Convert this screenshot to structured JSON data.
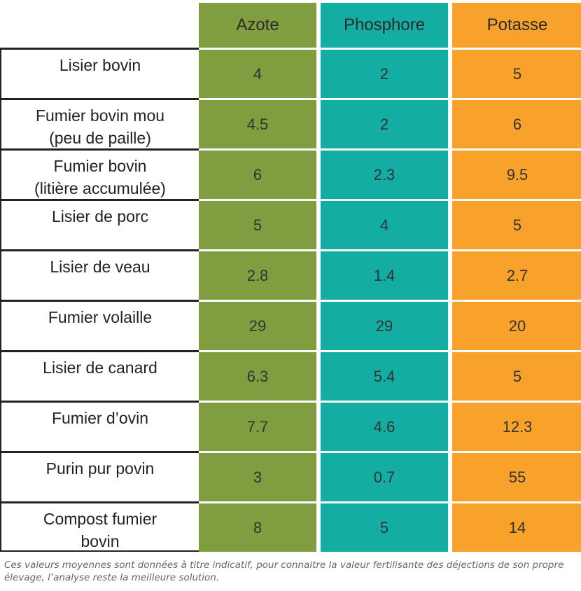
{
  "columns": [
    "Azote",
    "Phosphore",
    "Potasse"
  ],
  "colors": {
    "azote": "#809e40",
    "phosphore": "#14ada4",
    "potasse": "#f8a22c"
  },
  "rows": [
    {
      "label": "Lisier bovin",
      "azote": "4",
      "phosphore": "2",
      "potasse": "5"
    },
    {
      "label": "Fumier bovin mou\n(peu de paille)",
      "azote": "4.5",
      "phosphore": "2",
      "potasse": "6"
    },
    {
      "label": "Fumier bovin\n(litière accumulée)",
      "azote": "6",
      "phosphore": "2.3",
      "potasse": "9.5"
    },
    {
      "label": "Lisier de porc",
      "azote": "5",
      "phosphore": "4",
      "potasse": "5"
    },
    {
      "label": "Lisier de veau",
      "azote": "2.8",
      "phosphore": "1.4",
      "potasse": "2.7"
    },
    {
      "label": "Fumier volaille",
      "azote": "29",
      "phosphore": "29",
      "potasse": "20"
    },
    {
      "label": "Lisier de canard",
      "azote": "6.3",
      "phosphore": "5.4",
      "potasse": "5"
    },
    {
      "label": "Fumier d’ovin",
      "azote": "7.7",
      "phosphore": "4.6",
      "potasse": "12.3"
    },
    {
      "label": "Purin pur povin",
      "azote": "3",
      "phosphore": "0.7",
      "potasse": "55"
    },
    {
      "label": "Compost fumier\nbovin",
      "azote": "8",
      "phosphore": "5",
      "potasse": "14"
    }
  ],
  "footnote": "Ces valeurs moyennes sont données à titre indicatif, pour connaitre la valeur fertilisante des déjections de son propre élevage, l’analyse reste la meilleure solution."
}
